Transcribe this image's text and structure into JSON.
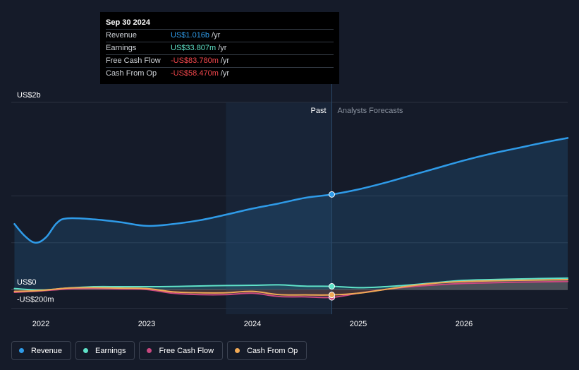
{
  "tooltip": {
    "date": "Sep 30 2024",
    "rows": [
      {
        "label": "Revenue",
        "value": "US$1.016b",
        "unit": "/yr",
        "color": "#2f9be8"
      },
      {
        "label": "Earnings",
        "value": "US$33.807m",
        "unit": "/yr",
        "color": "#5fe2c8"
      },
      {
        "label": "Free Cash Flow",
        "value": "-US$83.780m",
        "unit": "/yr",
        "color": "#f0464b"
      },
      {
        "label": "Cash From Op",
        "value": "-US$58.470m",
        "unit": "/yr",
        "color": "#f0464b"
      }
    ]
  },
  "chart_data": {
    "type": "line",
    "y_tick_labels": [
      {
        "value": 2000,
        "label": "US$2b"
      },
      {
        "value": 0,
        "label": "US$0"
      },
      {
        "value": -200,
        "label": "-US$200m"
      }
    ],
    "ylim": [
      -200,
      2000
    ],
    "xlim": [
      2021.72,
      2026.98
    ],
    "x_ticks": [
      {
        "value": 2022,
        "label": "2022"
      },
      {
        "value": 2023,
        "label": "2023"
      },
      {
        "value": 2024,
        "label": "2024"
      },
      {
        "value": 2025,
        "label": "2025"
      },
      {
        "value": 2026,
        "label": "2026"
      }
    ],
    "grid": true,
    "past_label": "Past",
    "forecast_label": "Analysts Forecasts",
    "divider_x": 2024.75,
    "highlight_start_x": 2023.75,
    "series": [
      {
        "name": "Revenue",
        "color": "#2f9be8",
        "fill": true,
        "x": [
          2021.75,
          2021.85,
          2021.95,
          2022.05,
          2022.15,
          2022.25,
          2022.5,
          2022.75,
          2023.0,
          2023.25,
          2023.5,
          2023.75,
          2024.0,
          2024.25,
          2024.5,
          2024.75,
          2025.0,
          2025.25,
          2025.5,
          2025.75,
          2026.0,
          2026.25,
          2026.5,
          2026.75,
          2026.98
        ],
        "y": [
          700,
          570,
          500,
          560,
          710,
          760,
          750,
          720,
          680,
          700,
          740,
          800,
          865,
          920,
          980,
          1016,
          1070,
          1140,
          1220,
          1300,
          1380,
          1450,
          1510,
          1570,
          1620
        ]
      },
      {
        "name": "Earnings",
        "color": "#5fe2c8",
        "fill": false,
        "x": [
          2021.75,
          2022.0,
          2022.25,
          2022.5,
          2022.75,
          2023.0,
          2023.25,
          2023.5,
          2023.75,
          2024.0,
          2024.25,
          2024.5,
          2024.75,
          2025.0,
          2025.25,
          2025.5,
          2025.75,
          2026.0,
          2026.25,
          2026.5,
          2026.75,
          2026.98
        ],
        "y": [
          10,
          -5,
          15,
          30,
          30,
          30,
          32,
          38,
          42,
          45,
          50,
          36,
          34,
          20,
          30,
          50,
          75,
          98,
          106,
          112,
          118,
          122
        ]
      },
      {
        "name": "Free Cash Flow",
        "color": "#c8487f",
        "fill": false,
        "x": [
          2021.75,
          2022.0,
          2022.25,
          2022.5,
          2022.75,
          2023.0,
          2023.25,
          2023.5,
          2023.75,
          2024.0,
          2024.25,
          2024.5,
          2024.75,
          2025.0,
          2025.25,
          2025.5,
          2025.75,
          2026.0,
          2026.25,
          2026.5,
          2026.75,
          2026.98
        ],
        "y": [
          -30,
          -15,
          5,
          10,
          5,
          0,
          -40,
          -55,
          -55,
          -40,
          -75,
          -78,
          -84,
          -40,
          0,
          30,
          50,
          65,
          72,
          78,
          82,
          86
        ]
      },
      {
        "name": "Cash From Op",
        "color": "#f0a955",
        "fill": false,
        "x": [
          2021.75,
          2022.0,
          2022.25,
          2022.5,
          2022.75,
          2023.0,
          2023.25,
          2023.5,
          2023.75,
          2024.0,
          2024.25,
          2024.5,
          2024.75,
          2025.0,
          2025.25,
          2025.5,
          2025.75,
          2026.0,
          2026.25,
          2026.5,
          2026.75,
          2026.98
        ],
        "y": [
          -20,
          -10,
          15,
          20,
          15,
          10,
          -25,
          -35,
          -35,
          -20,
          -55,
          -58,
          -58,
          -40,
          0,
          40,
          70,
          85,
          92,
          98,
          102,
          106
        ]
      }
    ]
  },
  "legend": [
    {
      "label": "Revenue",
      "color": "#2f9be8"
    },
    {
      "label": "Earnings",
      "color": "#5fe2c8"
    },
    {
      "label": "Free Cash Flow",
      "color": "#c8487f"
    },
    {
      "label": "Cash From Op",
      "color": "#f0a955"
    }
  ]
}
